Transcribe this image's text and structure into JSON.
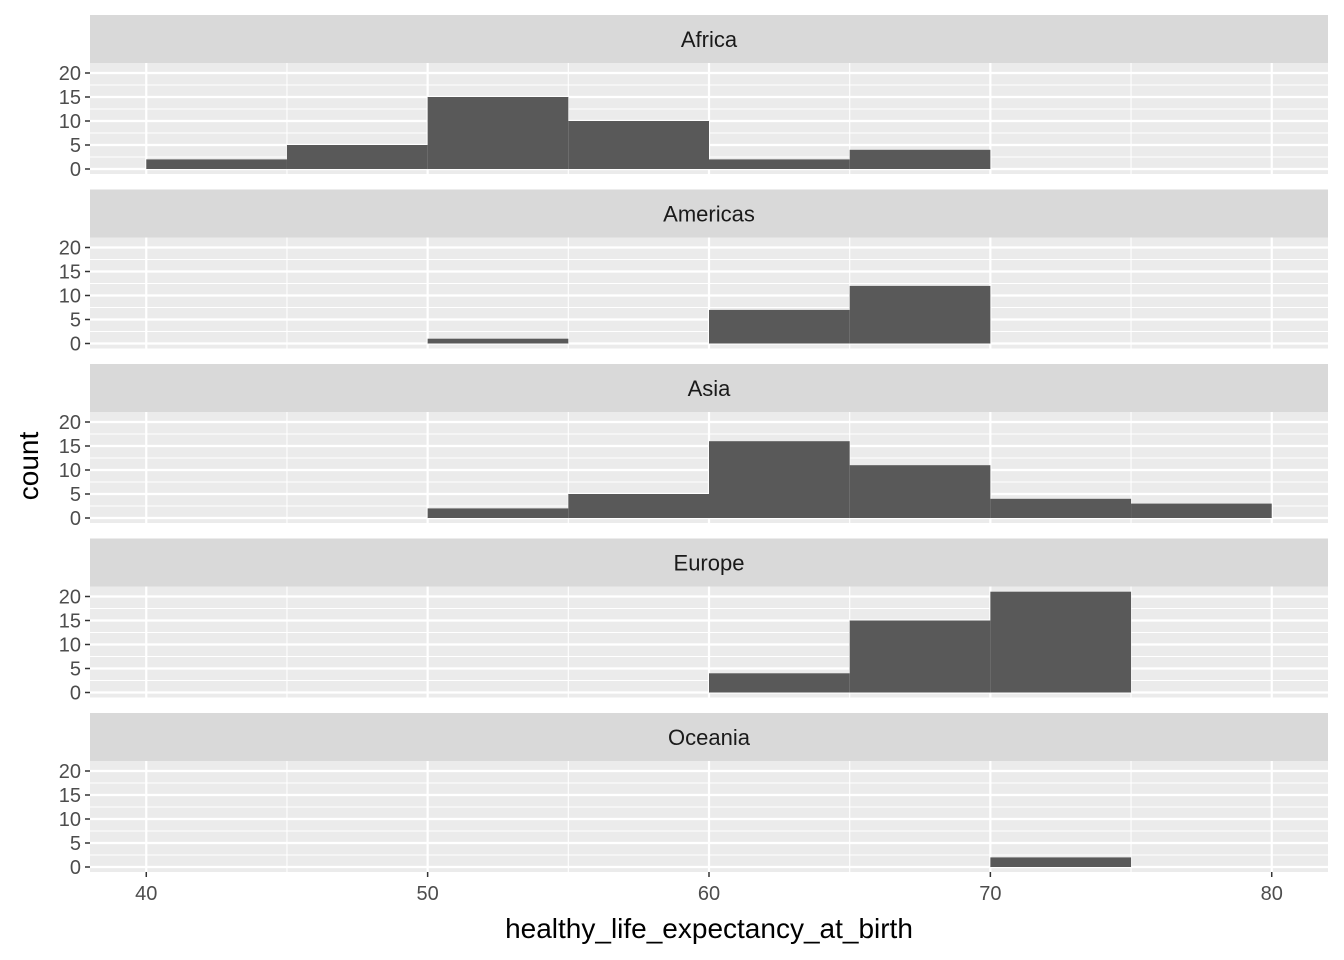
{
  "chart_data": {
    "type": "bar",
    "subtype": "histogram-faceted",
    "xlabel": "healthy_life_expectancy_at_birth",
    "ylabel": "count",
    "xlim": [
      38,
      82
    ],
    "ylim": [
      0,
      23
    ],
    "x_ticks": [
      40,
      50,
      60,
      70,
      80
    ],
    "y_ticks": [
      0,
      5,
      10,
      15,
      20
    ],
    "bin_width": 5,
    "bin_starts": [
      40,
      45,
      50,
      55,
      60,
      65,
      70,
      75
    ],
    "grid": true,
    "bar_color": "#595959",
    "panel_background": "#ebebeb",
    "strip_background": "#d9d9d9",
    "series": [
      {
        "name": "Africa",
        "values": [
          2,
          5,
          15,
          10,
          2,
          4,
          0,
          0
        ]
      },
      {
        "name": "Americas",
        "values": [
          0,
          0,
          1,
          0,
          7,
          12,
          0,
          0
        ]
      },
      {
        "name": "Asia",
        "values": [
          0,
          0,
          2,
          5,
          16,
          11,
          4,
          3
        ]
      },
      {
        "name": "Europe",
        "values": [
          0,
          0,
          0,
          0,
          4,
          15,
          21,
          0
        ]
      },
      {
        "name": "Oceania",
        "values": [
          0,
          0,
          0,
          0,
          0,
          0,
          2,
          0
        ]
      }
    ]
  }
}
